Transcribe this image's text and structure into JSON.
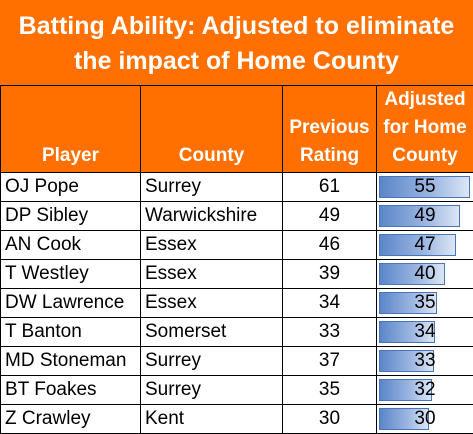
{
  "title": {
    "line1": "Batting Ability: Adjusted to eliminate",
    "line2": "the impact of Home County"
  },
  "headers": {
    "player": "Player",
    "county": "County",
    "previous": [
      "Previous",
      "Rating"
    ],
    "adjusted": [
      "Adjusted",
      "for Home",
      "County"
    ]
  },
  "colors": {
    "header_bg": "#FF7000",
    "bar_fill": "#5B86C9",
    "bar_border": "#4A74B8"
  },
  "rows": [
    {
      "player": "OJ Pope",
      "county": "Surrey",
      "previous": "61",
      "adjusted": "55",
      "bar_fraction": 1.0
    },
    {
      "player": "DP Sibley",
      "county": "Warwickshire",
      "previous": "49",
      "adjusted": "49",
      "bar_fraction": 0.89
    },
    {
      "player": "AN Cook",
      "county": "Essex",
      "previous": "46",
      "adjusted": "47",
      "bar_fraction": 0.85
    },
    {
      "player": "T Westley",
      "county": "Essex",
      "previous": "39",
      "adjusted": "40",
      "bar_fraction": 0.73
    },
    {
      "player": "DW Lawrence",
      "county": "Essex",
      "previous": "34",
      "adjusted": "35",
      "bar_fraction": 0.64
    },
    {
      "player": "T Banton",
      "county": "Somerset",
      "previous": "33",
      "adjusted": "34",
      "bar_fraction": 0.62
    },
    {
      "player": "MD Stoneman",
      "county": "Surrey",
      "previous": "37",
      "adjusted": "33",
      "bar_fraction": 0.6
    },
    {
      "player": "BT Foakes",
      "county": "Surrey",
      "previous": "35",
      "adjusted": "32",
      "bar_fraction": 0.58
    },
    {
      "player": "Z Crawley",
      "county": "Kent",
      "previous": "30",
      "adjusted": "30",
      "bar_fraction": 0.55
    }
  ]
}
